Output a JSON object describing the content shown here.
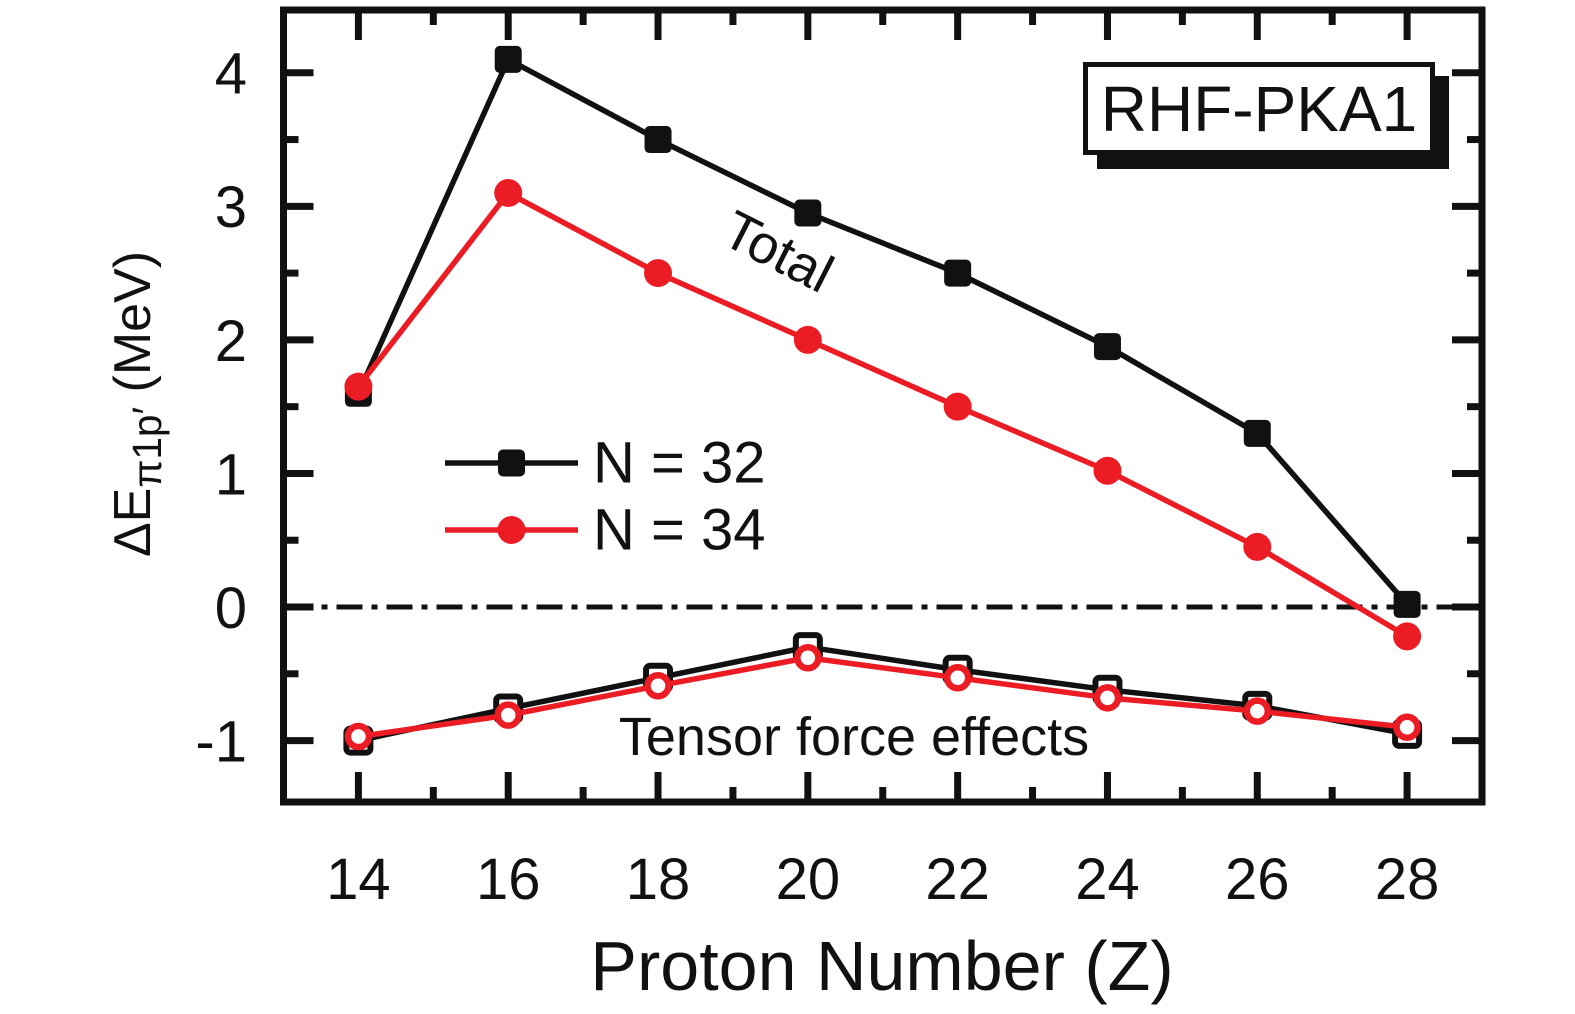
{
  "figure": {
    "background": "#ffffff",
    "ink_color": "#111111",
    "accent_red": "#EC1C24",
    "model_box_label": "RHF-PKA1",
    "x_axis_title": "Proton Number (Z)",
    "y_axis_title": {
      "main": "ΔE",
      "sub": "π1p′",
      "unit": " (MeV)"
    },
    "annotations": {
      "total": "Total",
      "tensor": "Tensor force effects"
    }
  },
  "legend": [
    {
      "label": "N = 32",
      "color": "#111111",
      "marker": "square-filled"
    },
    {
      "label": "N = 34",
      "color": "#EC1C24",
      "marker": "circle-filled"
    }
  ],
  "chart_data": {
    "type": "line",
    "title": "",
    "xlabel": "Proton Number (Z)",
    "ylabel": "ΔE_π1p′ (MeV)",
    "x": [
      14,
      16,
      18,
      20,
      22,
      24,
      26,
      28
    ],
    "series": [
      {
        "name": "Total, N = 32",
        "group": "Total",
        "legend": "N = 32",
        "color": "#111111",
        "marker": "square-filled",
        "values": [
          1.6,
          4.1,
          3.5,
          2.95,
          2.5,
          1.95,
          1.3,
          0.02
        ]
      },
      {
        "name": "Total, N = 34",
        "group": "Total",
        "legend": "N = 34",
        "color": "#EC1C24",
        "marker": "circle-filled",
        "values": [
          1.65,
          3.1,
          2.5,
          2.0,
          1.5,
          1.02,
          0.45,
          -0.22
        ]
      },
      {
        "name": "Tensor force effects, N = 32",
        "group": "Tensor force effects",
        "legend": "N = 32",
        "color": "#111111",
        "marker": "square-open",
        "values": [
          -1.0,
          -0.76,
          -0.53,
          -0.3,
          -0.47,
          -0.62,
          -0.74,
          -0.95
        ]
      },
      {
        "name": "Tensor force effects, N = 34",
        "group": "Tensor force effects",
        "legend": "N = 34",
        "color": "#EC1C24",
        "marker": "circle-open",
        "values": [
          -0.97,
          -0.81,
          -0.59,
          -0.38,
          -0.53,
          -0.68,
          -0.78,
          -0.9
        ]
      }
    ],
    "xlim": [
      13,
      29
    ],
    "ylim": [
      -1.46,
      4.47
    ],
    "x_major_ticks": [
      14,
      16,
      18,
      20,
      22,
      24,
      26,
      28
    ],
    "x_minor_ticks": [
      15,
      17,
      19,
      21,
      23,
      25,
      27
    ],
    "y_major_ticks": [
      -1,
      0,
      1,
      2,
      3,
      4
    ],
    "y_minor_ticks": [
      -0.5,
      0.5,
      1.5,
      2.5,
      3.5
    ],
    "zero_line": 0,
    "grid": false,
    "legend_position": "inside-left-middle"
  }
}
